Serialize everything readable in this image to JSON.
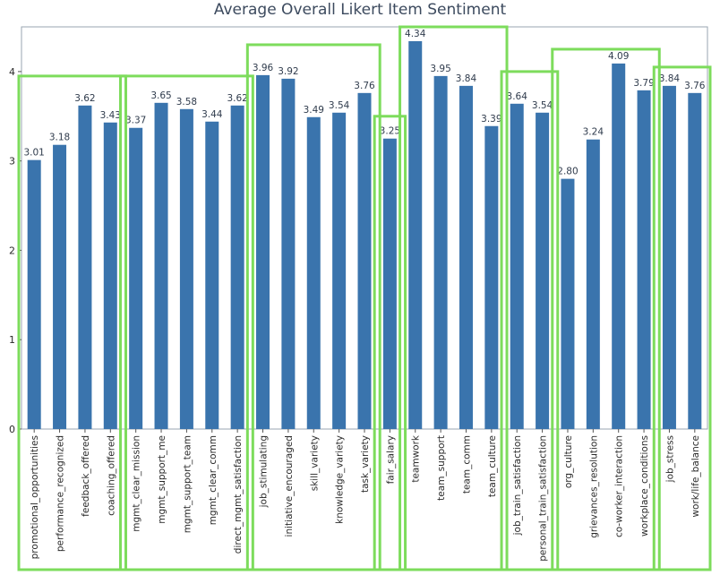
{
  "chart_data": {
    "type": "bar",
    "title": "Average Overall Likert Item Sentiment",
    "xlabel": "",
    "ylabel": "",
    "ylim": [
      0,
      4.5
    ],
    "yticks": [
      0,
      1,
      2,
      3,
      4
    ],
    "grid": false,
    "bar_color": "#3a74ad",
    "group_box_color": "#7ddc5c",
    "categories": [
      "promotional_opportunities",
      "performance_recognized",
      "feedback_offered",
      "coaching_offered",
      "mgmt_clear_mission",
      "mgmt_support_me",
      "mgmt_support_team",
      "mgmt_clear_comm",
      "direct_mgmt_satisfaction",
      "job_stimulating",
      "initiative_encouraged",
      "skill_variety",
      "knowledge_variety",
      "task_variety",
      "fair_salary",
      "teamwork",
      "team_support",
      "team_comm",
      "team_culture",
      "job_train_satisfaction",
      "personal_train_satisfaction",
      "org_culture",
      "grievances_resolution",
      "co-worker_interaction",
      "workplace_conditions",
      "job_stress",
      "work/life_balance"
    ],
    "values": [
      3.01,
      3.18,
      3.62,
      3.43,
      3.37,
      3.65,
      3.58,
      3.44,
      3.62,
      3.96,
      3.92,
      3.49,
      3.54,
      3.76,
      3.25,
      4.34,
      3.95,
      3.84,
      3.39,
      3.64,
      3.54,
      2.8,
      3.24,
      4.09,
      3.79,
      3.84,
      3.76
    ],
    "value_labels": [
      "3.01",
      "3.18",
      "3.62",
      "3.43",
      "3.37",
      "3.65",
      "3.58",
      "3.44",
      "3.62",
      "3.96",
      "3.92",
      "3.49",
      "3.54",
      "3.76",
      "3.25",
      "4.34",
      "3.95",
      "3.84",
      "3.39",
      "3.64",
      "3.54",
      "2.80",
      "3.24",
      "4.09",
      "3.79",
      "3.84",
      "3.76"
    ],
    "groups": [
      {
        "start": 0,
        "end": 3,
        "top_value": 3.95
      },
      {
        "start": 4,
        "end": 8,
        "top_value": 3.95
      },
      {
        "start": 9,
        "end": 13,
        "top_value": 4.3
      },
      {
        "start": 14,
        "end": 14,
        "top_value": 3.5
      },
      {
        "start": 15,
        "end": 18,
        "top_value": 4.5
      },
      {
        "start": 19,
        "end": 20,
        "top_value": 4.0
      },
      {
        "start": 21,
        "end": 24,
        "top_value": 4.25
      },
      {
        "start": 25,
        "end": 26,
        "top_value": 4.05
      }
    ]
  }
}
